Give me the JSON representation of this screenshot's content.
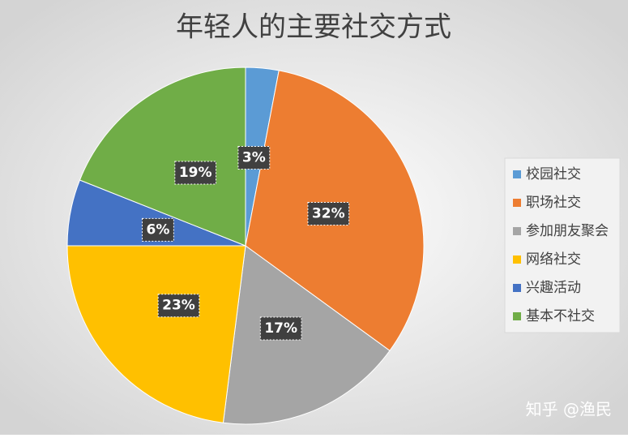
{
  "chart_data": {
    "type": "pie",
    "title": "年轻人的主要社交方式",
    "categories": [
      "校园社交",
      "职场社交",
      "参加朋友聚会",
      "网络社交",
      "兴趣活动",
      "基本不社交"
    ],
    "values": [
      3,
      32,
      17,
      23,
      6,
      19
    ],
    "value_labels": [
      "3%",
      "32%",
      "17%",
      "23%",
      "6%",
      "19%"
    ],
    "colors": [
      "#5b9bd5",
      "#ed7d31",
      "#a5a5a5",
      "#ffc000",
      "#4472c4",
      "#70ad47"
    ],
    "legend": "right"
  },
  "watermark": "知乎 @渔民"
}
